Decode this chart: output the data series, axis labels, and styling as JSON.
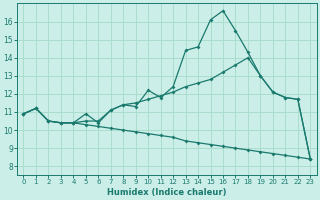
{
  "xlabel": "Humidex (Indice chaleur)",
  "bg_color": "#cceee8",
  "grid_color": "#aaddcc",
  "line_color": "#1a7a6e",
  "xlim": [
    -0.5,
    23.5
  ],
  "ylim": [
    7.5,
    17.0
  ],
  "yticks": [
    8,
    9,
    10,
    11,
    12,
    13,
    14,
    15,
    16
  ],
  "xticks": [
    0,
    1,
    2,
    3,
    4,
    5,
    6,
    7,
    8,
    9,
    10,
    11,
    12,
    13,
    14,
    15,
    16,
    17,
    18,
    19,
    20,
    21,
    22,
    23
  ],
  "curve1_x": [
    0,
    1,
    2,
    3,
    4,
    5,
    6,
    7,
    8,
    9,
    10,
    11,
    12,
    13,
    14,
    15,
    16,
    17,
    18,
    19,
    20,
    21,
    22,
    23
  ],
  "curve1_y": [
    10.9,
    11.2,
    10.5,
    10.4,
    10.4,
    10.9,
    10.4,
    11.1,
    11.4,
    11.3,
    12.2,
    11.8,
    12.4,
    14.4,
    14.6,
    16.1,
    16.6,
    15.5,
    14.3,
    13.0,
    12.1,
    11.8,
    11.7,
    8.4
  ],
  "curve2_x": [
    0,
    1,
    2,
    3,
    4,
    5,
    6,
    7,
    8,
    9,
    10,
    11,
    12,
    13,
    14,
    15,
    16,
    17,
    18,
    19,
    20,
    21,
    22,
    23
  ],
  "curve2_y": [
    10.9,
    11.2,
    10.5,
    10.4,
    10.4,
    10.5,
    10.5,
    11.1,
    11.4,
    11.5,
    11.7,
    11.9,
    12.1,
    12.4,
    12.6,
    12.8,
    13.2,
    13.6,
    14.0,
    13.0,
    12.1,
    11.8,
    11.7,
    8.4
  ],
  "curve3_x": [
    0,
    1,
    2,
    3,
    4,
    5,
    6,
    7,
    8,
    9,
    10,
    11,
    12,
    13,
    14,
    15,
    16,
    17,
    18,
    19,
    20,
    21,
    22,
    23
  ],
  "curve3_y": [
    10.9,
    11.2,
    10.5,
    10.4,
    10.4,
    10.3,
    10.2,
    10.1,
    10.0,
    9.9,
    9.8,
    9.7,
    9.6,
    9.4,
    9.3,
    9.2,
    9.1,
    9.0,
    8.9,
    8.8,
    8.7,
    8.6,
    8.5,
    8.4
  ]
}
